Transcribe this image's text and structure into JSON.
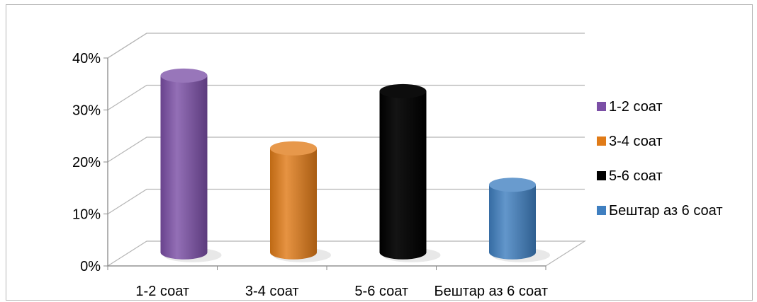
{
  "chart_data": {
    "type": "bar",
    "style": "3d-cylinder",
    "categories": [
      "1-2 соат",
      "3-4 соат",
      "5-6 соат",
      "Бештар аз 6 соат"
    ],
    "values": [
      34,
      20,
      31,
      13
    ],
    "value_unit": "%",
    "ylim": [
      0,
      40
    ],
    "yticks": [
      "0%",
      "10%",
      "20%",
      "30%",
      "40%"
    ],
    "grid": true,
    "legend": {
      "placement": "right",
      "entries": [
        {
          "label": "1-2 соат",
          "color": "#7b4fa6"
        },
        {
          "label": "3-4 соат",
          "color": "#e07b18"
        },
        {
          "label": "5-6 соат",
          "color": "#000000"
        },
        {
          "label": "Бештар аз 6 соат",
          "color": "#3f7fc0"
        }
      ]
    },
    "colors": [
      "#7b4fa6",
      "#e07b18",
      "#000000",
      "#3f7fc0"
    ]
  }
}
